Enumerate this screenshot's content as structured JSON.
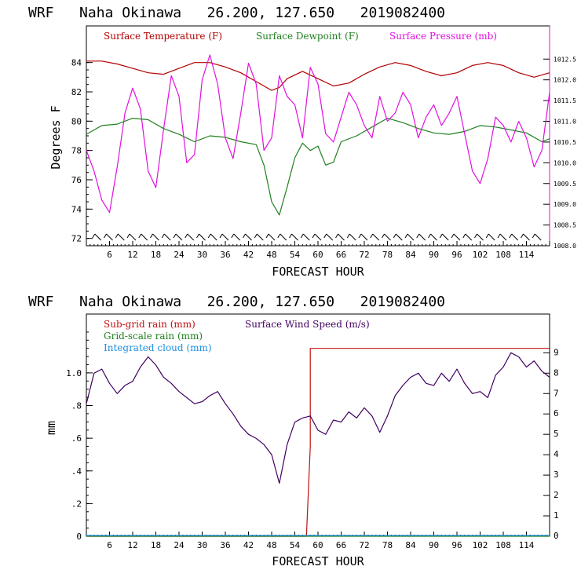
{
  "chart_data": [
    {
      "type": "line",
      "title": "WRF   Naha Okinawa   26.200, 127.650   2019082400",
      "xlabel": "FORECAST HOUR",
      "ylabel": "Degrees F",
      "xlim": [
        0,
        120
      ],
      "ylim": [
        71.5,
        86.5
      ],
      "y2lim": [
        1008.0,
        1013.3
      ],
      "x_ticks": [
        6,
        12,
        18,
        24,
        30,
        36,
        42,
        48,
        54,
        60,
        66,
        72,
        78,
        84,
        90,
        96,
        102,
        108,
        114
      ],
      "y_ticks": [
        72,
        74,
        76,
        78,
        80,
        82,
        84
      ],
      "y2_ticks": [
        "1008.0",
        "1008.5",
        "1009.0",
        "1009.5",
        "1010.0",
        "1010.5",
        "1011.0",
        "1011.5",
        "1012.0",
        "1012.5"
      ],
      "wind_barbs": "present",
      "series": [
        {
          "name": "Surface Temperature (F)",
          "color": "#b00000",
          "axis": "left",
          "x": [
            0,
            4,
            8,
            12,
            16,
            20,
            24,
            28,
            32,
            36,
            40,
            44,
            48,
            50,
            52,
            56,
            60,
            64,
            68,
            72,
            76,
            80,
            84,
            88,
            92,
            96,
            100,
            104,
            108,
            112,
            116,
            120
          ],
          "values": [
            84.1,
            84.1,
            83.9,
            83.6,
            83.3,
            83.2,
            83.6,
            84.0,
            84.0,
            83.7,
            83.3,
            82.7,
            82.1,
            82.3,
            82.9,
            83.4,
            82.9,
            82.4,
            82.6,
            83.2,
            83.7,
            84.0,
            83.8,
            83.4,
            83.1,
            83.3,
            83.8,
            84.0,
            83.8,
            83.3,
            83.0,
            83.3
          ]
        },
        {
          "name": "Surface Dewpoint (F)",
          "color": "#208020",
          "axis": "left",
          "x": [
            0,
            4,
            8,
            12,
            16,
            20,
            24,
            28,
            32,
            36,
            40,
            44,
            46,
            48,
            50,
            52,
            54,
            56,
            58,
            60,
            62,
            64,
            66,
            70,
            74,
            78,
            82,
            86,
            90,
            94,
            98,
            102,
            106,
            110,
            114,
            118,
            120
          ],
          "values": [
            79.1,
            79.7,
            79.8,
            80.2,
            80.1,
            79.5,
            79.1,
            78.6,
            79.0,
            78.9,
            78.6,
            78.4,
            77.0,
            74.5,
            73.6,
            75.5,
            77.5,
            78.5,
            78.0,
            78.3,
            77.0,
            77.2,
            78.6,
            79.0,
            79.6,
            80.2,
            79.9,
            79.5,
            79.2,
            79.1,
            79.3,
            79.7,
            79.6,
            79.4,
            79.2,
            78.6,
            78.8
          ]
        },
        {
          "name": "Surface Pressure (mb)",
          "color": "#e010e0",
          "axis": "right",
          "x": [
            0,
            2,
            4,
            6,
            8,
            10,
            12,
            14,
            16,
            18,
            20,
            22,
            24,
            26,
            28,
            30,
            32,
            34,
            36,
            38,
            40,
            42,
            44,
            46,
            48,
            50,
            52,
            54,
            56,
            58,
            60,
            62,
            64,
            66,
            68,
            70,
            72,
            74,
            76,
            78,
            80,
            82,
            84,
            86,
            88,
            90,
            92,
            94,
            96,
            98,
            100,
            102,
            104,
            106,
            108,
            110,
            112,
            114,
            116,
            118,
            120
          ],
          "values": [
            1010.3,
            1009.8,
            1009.1,
            1008.8,
            1009.9,
            1011.2,
            1011.8,
            1011.3,
            1009.8,
            1009.4,
            1010.8,
            1012.1,
            1011.6,
            1010.0,
            1010.2,
            1012.0,
            1012.6,
            1011.9,
            1010.6,
            1010.1,
            1011.2,
            1012.4,
            1011.9,
            1010.3,
            1010.6,
            1012.1,
            1011.6,
            1011.4,
            1010.6,
            1012.3,
            1011.9,
            1010.7,
            1010.5,
            1011.1,
            1011.7,
            1011.4,
            1010.9,
            1010.6,
            1011.6,
            1011.0,
            1011.2,
            1011.7,
            1011.4,
            1010.6,
            1011.1,
            1011.4,
            1010.9,
            1011.2,
            1011.6,
            1010.7,
            1009.8,
            1009.5,
            1010.1,
            1011.1,
            1010.9,
            1010.5,
            1011.0,
            1010.6,
            1009.9,
            1010.3,
            1011.7
          ]
        }
      ]
    },
    {
      "type": "line",
      "title": "WRF   Naha Okinawa   26.200, 127.650   2019082400",
      "xlabel": "FORECAST HOUR",
      "ylabel": "mm",
      "xlim": [
        0,
        120
      ],
      "ylim": [
        0,
        1.36
      ],
      "y2lim": [
        0,
        10.9
      ],
      "x_ticks": [
        6,
        12,
        18,
        24,
        30,
        36,
        42,
        48,
        54,
        60,
        66,
        72,
        78,
        84,
        90,
        96,
        102,
        108,
        114
      ],
      "y_tick_labels": [
        "0",
        ".2",
        ".4",
        ".6",
        ".8",
        "1.0"
      ],
      "y_tick_values": [
        0,
        0.2,
        0.4,
        0.6,
        0.8,
        1.0
      ],
      "y2_ticks": [
        "0",
        "1",
        "2",
        "3",
        "4",
        "5",
        "6",
        "7",
        "8",
        "9"
      ],
      "series": [
        {
          "name": "Sub-grid rain (mm)",
          "color": "#c01010",
          "axis": "left",
          "x": [
            0,
            57,
            57,
            58,
            58,
            120
          ],
          "values": [
            0,
            0,
            0.0,
            0.55,
            1.15,
            1.15
          ]
        },
        {
          "name": "Grid-scale rain (mm)",
          "color": "#208020",
          "axis": "left",
          "x": [
            0,
            120
          ],
          "values": [
            0,
            0
          ]
        },
        {
          "name": "Integrated cloud (mm)",
          "color": "#1e90e0",
          "axis": "left",
          "x": [
            0,
            120
          ],
          "values": [
            0.005,
            0.005
          ]
        },
        {
          "name": "Surface Wind Speed (m/s)",
          "color": "#400060",
          "axis": "right",
          "x": [
            0,
            2,
            4,
            6,
            8,
            10,
            12,
            14,
            16,
            18,
            20,
            22,
            24,
            26,
            28,
            30,
            32,
            34,
            36,
            38,
            40,
            42,
            44,
            46,
            48,
            50,
            52,
            54,
            56,
            58,
            60,
            62,
            64,
            66,
            68,
            70,
            72,
            74,
            76,
            78,
            80,
            82,
            84,
            86,
            88,
            90,
            92,
            94,
            96,
            98,
            100,
            102,
            104,
            106,
            108,
            110,
            112,
            114,
            116,
            118,
            120
          ],
          "values": [
            6.5,
            8.0,
            8.2,
            7.5,
            7.0,
            7.4,
            7.6,
            8.3,
            8.8,
            8.4,
            7.8,
            7.5,
            7.1,
            6.8,
            6.5,
            6.6,
            6.9,
            7.1,
            6.5,
            6.0,
            5.4,
            5.0,
            4.8,
            4.5,
            4.0,
            2.6,
            4.5,
            5.6,
            5.8,
            5.9,
            5.2,
            5.0,
            5.7,
            5.6,
            6.1,
            5.8,
            6.3,
            5.9,
            5.1,
            5.9,
            6.9,
            7.4,
            7.8,
            8.0,
            7.5,
            7.4,
            8.0,
            7.6,
            8.2,
            7.5,
            7.0,
            7.1,
            6.8,
            7.9,
            8.3,
            9.0,
            8.8,
            8.3,
            8.6,
            8.1,
            7.8
          ]
        }
      ]
    }
  ]
}
